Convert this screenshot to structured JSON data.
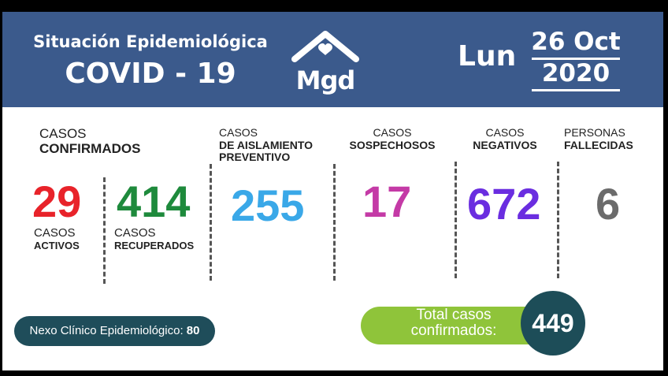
{
  "header": {
    "title_line1": "Situación Epidemiológica",
    "title_line2": "COVID - 19",
    "logo_text": "Mgd",
    "logo_icon": "house-heart-icon",
    "day": "Lun",
    "date": "26 Oct",
    "year": "2020",
    "background_color": "#3b5a8c"
  },
  "stats": {
    "confirmados": {
      "line1": "CASOS",
      "line2": "CONFIRMADOS"
    },
    "activos": {
      "value": "29",
      "line1": "CASOS",
      "line2": "ACTIVOS",
      "color": "#e8232a"
    },
    "recuperados": {
      "value": "414",
      "line1": "CASOS",
      "line2": "RECUPERADOS",
      "color": "#1e8a3c"
    },
    "aislamiento": {
      "value": "255",
      "line1": "CASOS",
      "line2": "DE AISLAMIENTO",
      "line3": "PREVENTIVO",
      "color": "#3aa8e8"
    },
    "sospechosos": {
      "value": "17",
      "line1": "CASOS",
      "line2": "SOSPECHOSOS",
      "color": "#c43aa6"
    },
    "negativos": {
      "value": "672",
      "line1": "CASOS",
      "line2": "NEGATIVOS",
      "color": "#6a2de0"
    },
    "fallecidas": {
      "value": "6",
      "line1": "PERSONAS",
      "line2": "FALLECIDAS",
      "color": "#6b6b6b"
    }
  },
  "nexo": {
    "label": "Nexo Clínico Epidemiológico:",
    "value": "80"
  },
  "total": {
    "line1": "Total casos",
    "line2": "confirmados:",
    "value": "449"
  }
}
